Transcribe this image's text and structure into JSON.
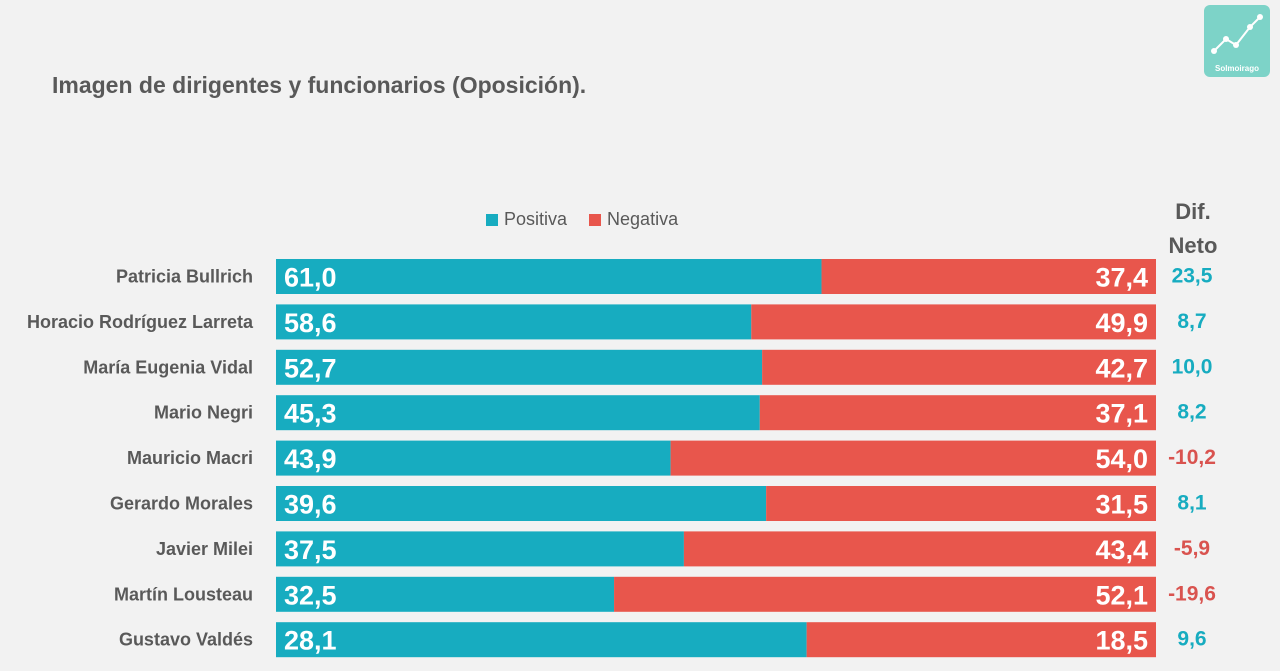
{
  "header": {
    "title": "Imagen de dirigentes y funcionarios (Oposición).",
    "logo_text": "Solmoirago"
  },
  "colors": {
    "positive": "#17acc0",
    "negative": "#e8564c",
    "net_positive": "#17acc0",
    "net_negative": "#d9534f",
    "text": "#595959"
  },
  "dif_header": {
    "line1": "Dif.",
    "line2": "Neto"
  },
  "chart_data": {
    "type": "bar",
    "stacked": true,
    "orientation": "horizontal",
    "legend_position": "top-center",
    "grid": false,
    "categories": [
      "Patricia Bullrich",
      "Horacio Rodríguez Larreta",
      "María Eugenia Vidal",
      "Mario Negri",
      "Mauricio Macri",
      "Gerardo Morales",
      "Javier Milei",
      "Martín Lousteau",
      "Gustavo Valdés"
    ],
    "series": [
      {
        "name": "Positiva",
        "values": [
          61.0,
          58.6,
          52.7,
          45.3,
          43.9,
          39.6,
          37.5,
          32.5,
          28.1
        ],
        "labels": [
          "61,0",
          "58,6",
          "52,7",
          "45,3",
          "43,9",
          "39,6",
          "37,5",
          "32,5",
          "28,1"
        ]
      },
      {
        "name": "Negativa",
        "values": [
          37.4,
          49.9,
          42.7,
          37.1,
          54.0,
          31.5,
          43.4,
          52.1,
          18.5
        ],
        "labels": [
          "37,4",
          "49,9",
          "42,7",
          "37,1",
          "54,0",
          "31,5",
          "43,4",
          "52,1",
          "18,5"
        ]
      }
    ],
    "net": {
      "values": [
        23.5,
        8.7,
        10.0,
        8.2,
        -10.2,
        8.1,
        -5.9,
        -19.6,
        9.6
      ],
      "labels": [
        "23,5",
        "8,7",
        "10,0",
        "8,2",
        "-10,2",
        "8,1",
        "-5,9",
        "-19,6",
        "9,6"
      ]
    }
  }
}
